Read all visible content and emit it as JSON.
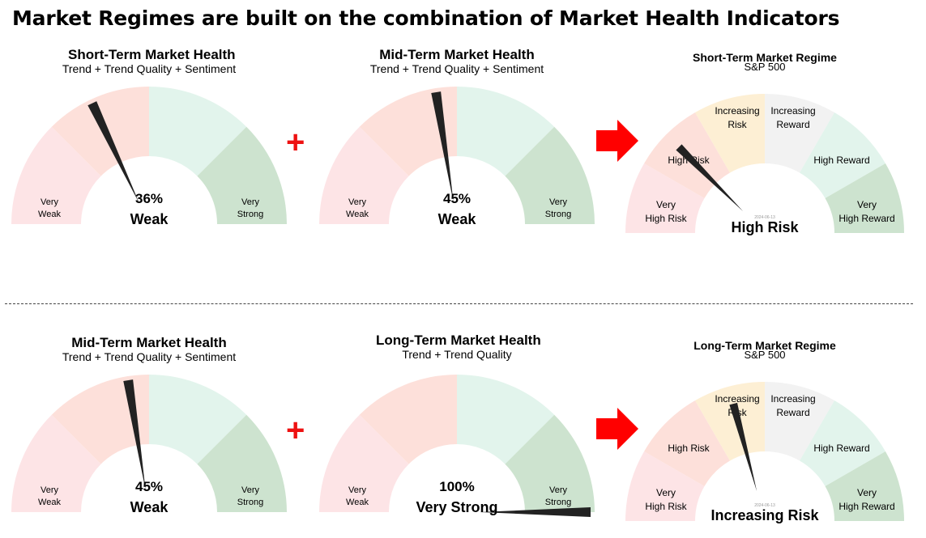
{
  "headline": "Market Regimes are built on the combination of Market Health Indicators",
  "health_gauges": [
    {
      "title": "Short-Term Market Health",
      "subtitle": "Trend + Trend Quality + Sentiment",
      "value_label": "36%",
      "status": "Weak",
      "needle_value": 36,
      "left_label": [
        "Very",
        "Weak"
      ],
      "right_label": [
        "Very",
        "Strong"
      ]
    },
    {
      "title": "Mid-Term Market Health",
      "subtitle": "Trend + Trend Quality + Sentiment",
      "value_label": "45%",
      "status": "Weak",
      "needle_value": 45,
      "left_label": [
        "Very",
        "Weak"
      ],
      "right_label": [
        "Very",
        "Strong"
      ]
    },
    {
      "title": "Mid-Term Market Health",
      "subtitle": "Trend + Trend Quality + Sentiment",
      "value_label": "45%",
      "status": "Weak",
      "needle_value": 45,
      "left_label": [
        "Very",
        "Weak"
      ],
      "right_label": [
        "Very",
        "Strong"
      ]
    },
    {
      "title": "Long-Term Market Health",
      "subtitle": "Trend + Trend Quality",
      "value_label": "100%",
      "status": "Very Strong",
      "needle_value": 100,
      "left_label": [
        "Very",
        "Weak"
      ],
      "right_label": [
        "Very",
        "Strong"
      ]
    }
  ],
  "regime_gauges": [
    {
      "title": "Short-Term Market Regime",
      "subtitle": "S&P 500",
      "date": "2024-06-13",
      "status": "High Risk",
      "needle_value": 1.5
    },
    {
      "title": "Long-Term Market Regime",
      "subtitle": "S&P 500",
      "date": "2024-06-13",
      "status": "Increasing Risk",
      "needle_value": 2.5
    }
  ],
  "regime_segments": [
    {
      "lines": [
        "Very",
        "High Risk"
      ],
      "color": "#fde4e6"
    },
    {
      "lines": [
        "High Risk"
      ],
      "color": "#fde0da"
    },
    {
      "lines": [
        "Increasing",
        "Risk"
      ],
      "color": "#fdefd4"
    },
    {
      "lines": [
        "Increasing",
        "Reward"
      ],
      "color": "#f2f2f2"
    },
    {
      "lines": [
        "High Reward"
      ],
      "color": "#e2f4ec"
    },
    {
      "lines": [
        "Very",
        "High Reward"
      ],
      "color": "#cde3cf"
    }
  ],
  "health_segment_colors": [
    "#fde4e6",
    "#fde0da",
    "#e2f4ec",
    "#cde3cf"
  ],
  "operators": {
    "plus": "+"
  },
  "colors": {
    "plus": "#ee1111",
    "arrow": "#ff0000",
    "needle": "#222222"
  }
}
